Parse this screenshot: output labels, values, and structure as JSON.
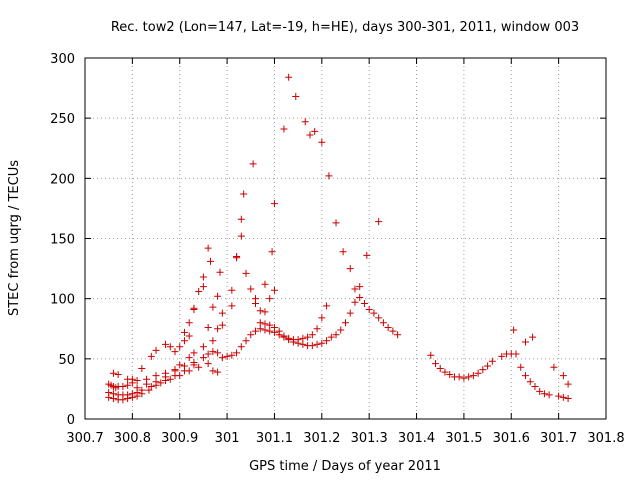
{
  "chart_data": {
    "type": "scatter",
    "title": "Rec. tow2 (Lon=147, Lat=-19, h=HE), days 300-301, 2011, window 003",
    "xlabel": "GPS time / Days of year 2011",
    "ylabel": "STEC from uqrg / TECUs",
    "xlim": [
      300.7,
      301.8
    ],
    "ylim": [
      0,
      300
    ],
    "x_ticks": [
      "300.7",
      "300.8",
      "300.9",
      "301",
      "301.1",
      "301.2",
      "301.3",
      "301.4",
      "301.5",
      "301.6",
      "301.7",
      "301.8"
    ],
    "y_ticks": [
      "0",
      "50",
      "100",
      "150",
      "200",
      "250",
      "300"
    ],
    "grid": true,
    "marker": "plus",
    "color": "#cc0000",
    "points": [
      [
        300.75,
        29
      ],
      [
        300.755,
        28
      ],
      [
        300.76,
        27
      ],
      [
        300.765,
        26
      ],
      [
        300.77,
        27
      ],
      [
        300.78,
        27
      ],
      [
        300.79,
        28
      ],
      [
        300.8,
        30
      ],
      [
        300.81,
        32
      ],
      [
        300.83,
        33
      ],
      [
        300.85,
        36
      ],
      [
        300.87,
        38
      ],
      [
        300.89,
        41
      ],
      [
        300.91,
        44
      ],
      [
        300.93,
        47
      ],
      [
        300.95,
        51
      ],
      [
        300.96,
        54
      ],
      [
        300.97,
        56
      ],
      [
        300.98,
        55
      ],
      [
        300.75,
        22
      ],
      [
        300.76,
        21
      ],
      [
        300.77,
        20
      ],
      [
        300.78,
        20
      ],
      [
        300.79,
        20
      ],
      [
        300.8,
        21
      ],
      [
        300.81,
        22
      ],
      [
        300.82,
        24
      ],
      [
        300.84,
        27
      ],
      [
        300.86,
        30
      ],
      [
        300.88,
        33
      ],
      [
        300.9,
        36
      ],
      [
        300.92,
        40
      ],
      [
        300.94,
        43
      ],
      [
        300.96,
        46
      ],
      [
        300.97,
        40
      ],
      [
        300.98,
        39
      ],
      [
        300.75,
        18
      ],
      [
        300.76,
        17
      ],
      [
        300.77,
        16
      ],
      [
        300.78,
        16
      ],
      [
        300.79,
        17
      ],
      [
        300.8,
        18
      ],
      [
        300.81,
        19
      ],
      [
        300.82,
        21
      ],
      [
        300.835,
        24
      ],
      [
        300.85,
        28
      ],
      [
        300.87,
        32
      ],
      [
        300.89,
        36
      ],
      [
        300.91,
        40
      ],
      [
        300.93,
        45
      ],
      [
        300.76,
        38
      ],
      [
        300.77,
        37
      ],
      [
        300.79,
        33
      ],
      [
        300.8,
        33
      ],
      [
        300.82,
        42
      ],
      [
        300.84,
        52
      ],
      [
        300.85,
        57
      ],
      [
        300.87,
        62
      ],
      [
        300.88,
        60
      ],
      [
        300.89,
        56
      ],
      [
        300.9,
        60
      ],
      [
        300.91,
        72
      ],
      [
        300.92,
        80
      ],
      [
        300.93,
        91
      ],
      [
        300.94,
        106
      ],
      [
        300.95,
        118
      ],
      [
        300.96,
        142
      ],
      [
        300.965,
        131
      ],
      [
        300.81,
        26
      ],
      [
        300.83,
        29
      ],
      [
        300.85,
        31
      ],
      [
        300.87,
        35
      ],
      [
        300.89,
        40
      ],
      [
        300.9,
        45
      ],
      [
        300.92,
        51
      ],
      [
        300.93,
        55
      ],
      [
        300.95,
        60
      ],
      [
        300.97,
        65
      ],
      [
        300.98,
        75
      ],
      [
        300.99,
        88
      ],
      [
        300.91,
        65
      ],
      [
        300.92,
        69
      ],
      [
        300.93,
        92
      ],
      [
        300.95,
        110
      ],
      [
        300.96,
        76
      ],
      [
        300.97,
        93
      ],
      [
        300.98,
        102
      ],
      [
        300.985,
        122
      ],
      [
        300.99,
        78
      ],
      [
        300.99,
        51
      ],
      [
        301.0,
        52
      ],
      [
        301.01,
        53
      ],
      [
        301.02,
        55
      ],
      [
        301.03,
        60
      ],
      [
        301.04,
        65
      ],
      [
        301.05,
        70
      ],
      [
        301.06,
        73
      ],
      [
        301.07,
        75
      ],
      [
        301.08,
        74
      ],
      [
        301.09,
        73
      ],
      [
        301.1,
        72
      ],
      [
        301.11,
        70
      ],
      [
        301.12,
        68
      ],
      [
        301.13,
        67
      ],
      [
        301.14,
        66
      ],
      [
        301.15,
        66
      ],
      [
        301.16,
        67
      ],
      [
        301.17,
        68
      ],
      [
        301.01,
        107
      ],
      [
        301.01,
        94
      ],
      [
        301.02,
        135
      ],
      [
        301.02,
        134
      ],
      [
        301.03,
        152
      ],
      [
        301.03,
        166
      ],
      [
        301.035,
        187
      ],
      [
        301.04,
        121
      ],
      [
        301.05,
        108
      ],
      [
        301.055,
        212
      ],
      [
        301.06,
        100
      ],
      [
        301.06,
        96
      ],
      [
        301.07,
        90
      ],
      [
        301.08,
        89
      ],
      [
        301.08,
        112
      ],
      [
        301.09,
        100
      ],
      [
        301.095,
        139
      ],
      [
        301.1,
        107
      ],
      [
        301.07,
        80
      ],
      [
        301.08,
        79
      ],
      [
        301.09,
        78
      ],
      [
        301.1,
        76
      ],
      [
        301.11,
        73
      ],
      [
        301.12,
        69
      ],
      [
        301.13,
        66
      ],
      [
        301.14,
        64
      ],
      [
        301.15,
        63
      ],
      [
        301.16,
        62
      ],
      [
        301.17,
        61
      ],
      [
        301.18,
        61
      ],
      [
        301.19,
        62
      ],
      [
        301.2,
        63
      ],
      [
        301.21,
        65
      ],
      [
        301.22,
        68
      ],
      [
        301.23,
        70
      ],
      [
        301.24,
        74
      ],
      [
        301.25,
        80
      ],
      [
        301.26,
        88
      ],
      [
        301.27,
        97
      ],
      [
        301.28,
        101
      ],
      [
        301.29,
        96
      ],
      [
        301.3,
        91
      ],
      [
        301.31,
        88
      ],
      [
        301.32,
        84
      ],
      [
        301.33,
        80
      ],
      [
        301.34,
        76
      ],
      [
        301.35,
        73
      ],
      [
        301.36,
        70
      ],
      [
        301.1,
        179
      ],
      [
        301.12,
        241
      ],
      [
        301.13,
        284
      ],
      [
        301.145,
        268
      ],
      [
        301.165,
        247
      ],
      [
        301.175,
        236
      ],
      [
        301.185,
        239
      ],
      [
        301.2,
        230
      ],
      [
        301.215,
        202
      ],
      [
        301.23,
        163
      ],
      [
        301.245,
        139
      ],
      [
        301.26,
        125
      ],
      [
        301.27,
        108
      ],
      [
        301.18,
        70
      ],
      [
        301.19,
        75
      ],
      [
        301.2,
        84
      ],
      [
        301.21,
        94
      ],
      [
        301.28,
        110
      ],
      [
        301.295,
        136
      ],
      [
        301.32,
        164
      ],
      [
        301.43,
        53
      ],
      [
        301.44,
        46
      ],
      [
        301.45,
        42
      ],
      [
        301.46,
        39
      ],
      [
        301.47,
        37
      ],
      [
        301.48,
        35
      ],
      [
        301.49,
        35
      ],
      [
        301.5,
        34
      ],
      [
        301.51,
        35
      ],
      [
        301.52,
        36
      ],
      [
        301.53,
        38
      ],
      [
        301.54,
        41
      ],
      [
        301.55,
        44
      ],
      [
        301.56,
        48
      ],
      [
        301.58,
        52
      ],
      [
        301.59,
        54
      ],
      [
        301.6,
        54
      ],
      [
        301.61,
        54
      ],
      [
        301.62,
        43
      ],
      [
        301.63,
        36
      ],
      [
        301.64,
        31
      ],
      [
        301.65,
        27
      ],
      [
        301.66,
        23
      ],
      [
        301.67,
        21
      ],
      [
        301.68,
        20
      ],
      [
        301.7,
        19
      ],
      [
        301.71,
        18
      ],
      [
        301.72,
        17
      ],
      [
        301.605,
        74
      ],
      [
        301.63,
        64
      ],
      [
        301.645,
        68
      ],
      [
        301.69,
        43
      ],
      [
        301.71,
        36
      ],
      [
        301.72,
        29
      ]
    ]
  }
}
